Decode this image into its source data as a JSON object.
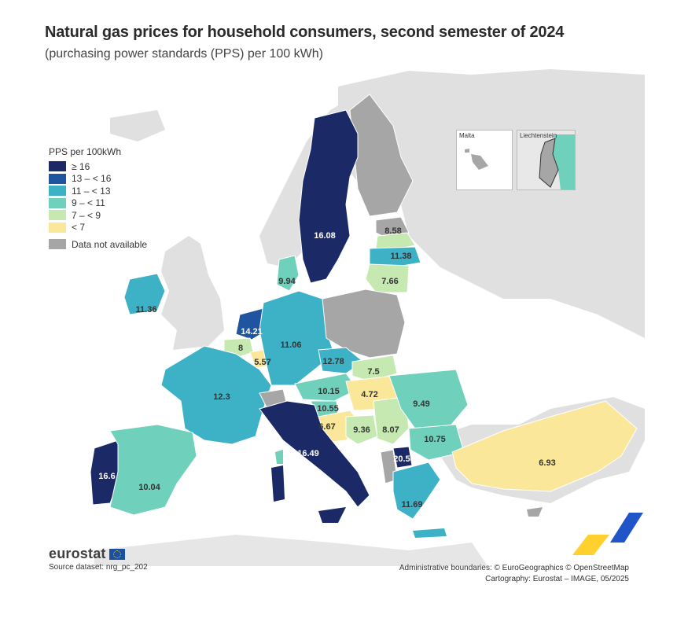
{
  "title": "Natural gas prices for household consumers, second semester of 2024",
  "subtitle": "(purchasing power standards (PPS) per 100 kWh)",
  "legend": {
    "title": "PPS per 100kWh",
    "items": [
      {
        "label": "≥ 16",
        "color": "#1b2a66"
      },
      {
        "label": "13 – < 16",
        "color": "#1f55a0"
      },
      {
        "label": "11 – < 13",
        "color": "#3db2c6"
      },
      {
        "label": "9 – < 11",
        "color": "#6fd0bb"
      },
      {
        "label": "7 – < 9",
        "color": "#c6e9b2"
      },
      {
        "label": "< 7",
        "color": "#fbe79a"
      }
    ],
    "na_label": "Data not available",
    "na_color": "#a6a6a6"
  },
  "insets": {
    "malta": "Malta",
    "liechtenstein": "Liechtenstein"
  },
  "countries": [
    {
      "id": "se",
      "value": "16.08"
    },
    {
      "id": "lv",
      "value": "8.58"
    },
    {
      "id": "lt",
      "value": "11.38"
    },
    {
      "id": "lt2",
      "value": "7.66"
    },
    {
      "id": "dk",
      "value": "9.94"
    },
    {
      "id": "ie",
      "value": "11.36"
    },
    {
      "id": "nl",
      "value": "14.21"
    },
    {
      "id": "be",
      "value": "8"
    },
    {
      "id": "lu",
      "value": "5.57"
    },
    {
      "id": "de",
      "value": "11.06"
    },
    {
      "id": "cz",
      "value": "12.78"
    },
    {
      "id": "sk",
      "value": "7.5"
    },
    {
      "id": "at",
      "value": "10.15"
    },
    {
      "id": "hu",
      "value": "4.72"
    },
    {
      "id": "si",
      "value": "10.55"
    },
    {
      "id": "hr",
      "value": "6.67"
    },
    {
      "id": "ba",
      "value": "9.36"
    },
    {
      "id": "rs",
      "value": "8.07"
    },
    {
      "id": "ro",
      "value": "9.49"
    },
    {
      "id": "bg",
      "value": "10.75"
    },
    {
      "id": "mk",
      "value": "20.53"
    },
    {
      "id": "gr",
      "value": "11.69"
    },
    {
      "id": "fr",
      "value": "12.3"
    },
    {
      "id": "it",
      "value": "16.49"
    },
    {
      "id": "pt",
      "value": "16.6"
    },
    {
      "id": "es",
      "value": "10.04"
    },
    {
      "id": "tr",
      "value": "6.93"
    }
  ],
  "footer": {
    "logo": "eurostat",
    "source": "Source dataset: nrg_pc_202",
    "credits_1": "Administrative boundaries: © EuroGeographics © OpenStreetMap",
    "credits_2": "Cartography: Eurostat – IMAGE, 05/2025"
  }
}
